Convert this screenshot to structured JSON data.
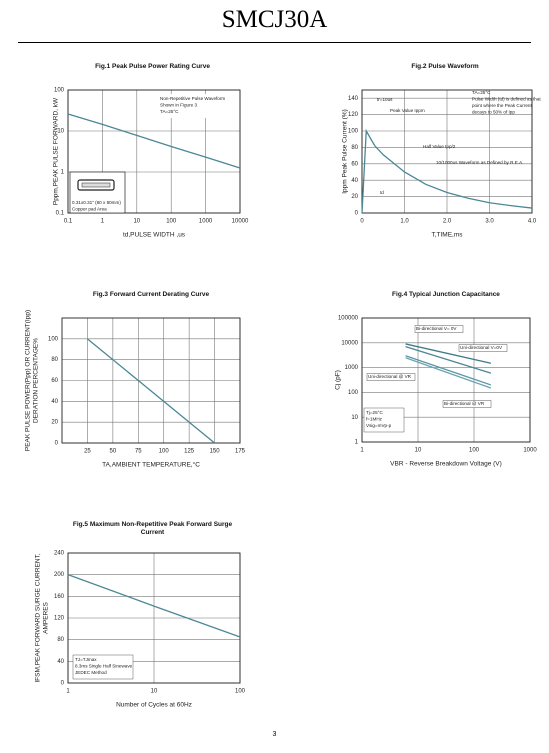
{
  "title": "SMCJ30A",
  "page_number": 3,
  "chart_data": [
    {
      "type": "line",
      "title": "Fig.1 Peak Pulse Power Rating Curve",
      "x_label": "td,PULSE WIDTH ,us",
      "y_label": "Pppm,PEAK PULSE FORWARD, kW",
      "xscale": "log",
      "yscale": "log",
      "xlim": [
        0.1,
        10000
      ],
      "xticks": [
        0.1,
        1,
        10,
        100,
        1000,
        10000
      ],
      "ylim": [
        0.1,
        100
      ],
      "yticks": [
        0.1,
        1,
        10,
        100
      ],
      "grid": true,
      "x": [
        0.1,
        1,
        10,
        100,
        1000,
        10000
      ],
      "series": [
        {
          "color": "#4b8796",
          "values": [
            26,
            14.5,
            7.8,
            4.2,
            2.3,
            1.25
          ]
        }
      ],
      "annotations": [
        [
          "Non-Repetitive Pulse Waveform",
          "Shown in Figure 3",
          "TA=25°C"
        ],
        [
          "0.31x0.31\" (80 x 80mm)",
          "Copper pad Area"
        ]
      ]
    },
    {
      "type": "line",
      "title": "Fig.2 Pulse Waveform",
      "x_label": "T,TIME,ms",
      "y_label": "Ippm Peak Pulse Current (%)",
      "xlim": [
        0,
        4
      ],
      "xticks": [
        0,
        {
          "value": 1,
          "label": "1.0"
        },
        {
          "value": 2,
          "label": "2.0"
        },
        {
          "value": 3,
          "label": "3.0"
        },
        {
          "value": 4,
          "label": "4.0"
        }
      ],
      "ylim": [
        0,
        150
      ],
      "yticks": [
        0,
        20,
        40,
        60,
        80,
        100,
        120,
        140
      ],
      "grid": true,
      "x": [
        0,
        0.1,
        0.3,
        0.5,
        1,
        1.5,
        2,
        2.5,
        3,
        3.5,
        4
      ],
      "series": [
        {
          "color": "#4b8796",
          "values": [
            0,
            100,
            82,
            71,
            50,
            35,
            25,
            18,
            12.5,
            9,
            6
          ]
        }
      ],
      "annotations": [
        [
          "tr=10us"
        ],
        [
          "Peak Value  Ippm"
        ],
        [
          "Half Value Ipp/2"
        ],
        [
          "10/1000us Waveform as Defined by R.E.A."
        ],
        [
          "TA=25°C",
          "Pulse Width (td) is defined as that",
          "point where the Peak Current",
          "decays to 50% of Ipp"
        ],
        [
          "td"
        ]
      ]
    },
    {
      "type": "line",
      "title": "Fig.3 Forward Current Derating Curve",
      "x_label": "TA,AMBIENT TEMPERATURE,°C",
      "y_label": [
        "PEAK PULSE POWER(Ppp) OR CURRENT(Ipp)",
        "DERATION PERCENTAGE%"
      ],
      "xlim": [
        0,
        175
      ],
      "xticks": [
        25,
        50,
        75,
        100,
        125,
        150,
        175
      ],
      "ylim": [
        0,
        120
      ],
      "yticks": [
        0,
        20,
        40,
        60,
        80,
        100
      ],
      "grid": true,
      "x": [
        25,
        150
      ],
      "series": [
        {
          "color": "#4b8796",
          "values": [
            100,
            0
          ]
        }
      ]
    },
    {
      "type": "line",
      "title": "Fig.4 Typical Junction Capacitance",
      "x_label": "VBR - Reverse Breakdown Voltage (V)",
      "y_label": "Cj (pF)",
      "xscale": "log",
      "yscale": "log",
      "xlim": [
        1,
        1000
      ],
      "xticks": [
        1,
        10,
        100,
        1000
      ],
      "ylim": [
        1,
        100000
      ],
      "yticks": [
        1,
        10,
        100,
        1000,
        10000,
        100000
      ],
      "grid": true,
      "x": [
        6,
        200
      ],
      "series": [
        {
          "name": "Bi-directional V= 0V",
          "color": "#4b8796",
          "values": [
            7000,
            600
          ]
        },
        {
          "name": "Uni-directional V=0V",
          "color": "#3f7a88",
          "values": [
            9000,
            1500
          ]
        },
        {
          "name": "Uni-directional @ VR",
          "color": "#5a96a4",
          "values": [
            3000,
            200
          ]
        },
        {
          "name": "Bi-directional @ VR",
          "color": "#6aa3b0",
          "values": [
            2500,
            150
          ]
        }
      ],
      "annotations": [
        [
          "Tj=25°C",
          "f=1MHz",
          "Vsig=mVp-p"
        ]
      ]
    },
    {
      "type": "line",
      "title": "Fig.5 Maximum Non-Repetitive Peak Forward Surge Current",
      "x_label": "Number of Cycles at 60Hz",
      "y_label": [
        "IFSM,PEAK FORWARD SURGE CURRENT,",
        "AMPERES"
      ],
      "xscale": "log",
      "xlim": [
        1,
        100
      ],
      "xticks": [
        1,
        10,
        100
      ],
      "ylim": [
        0,
        240
      ],
      "yticks": [
        0,
        40,
        80,
        120,
        160,
        200,
        240
      ],
      "grid": true,
      "x": [
        1,
        10,
        100
      ],
      "series": [
        {
          "color": "#4b8796",
          "values": [
            200,
            142,
            85
          ]
        }
      ],
      "annotations": [
        [
          "TJ=TJmax",
          "8.3ms Single Half Sinewave",
          "JEDEC Method"
        ]
      ]
    }
  ]
}
